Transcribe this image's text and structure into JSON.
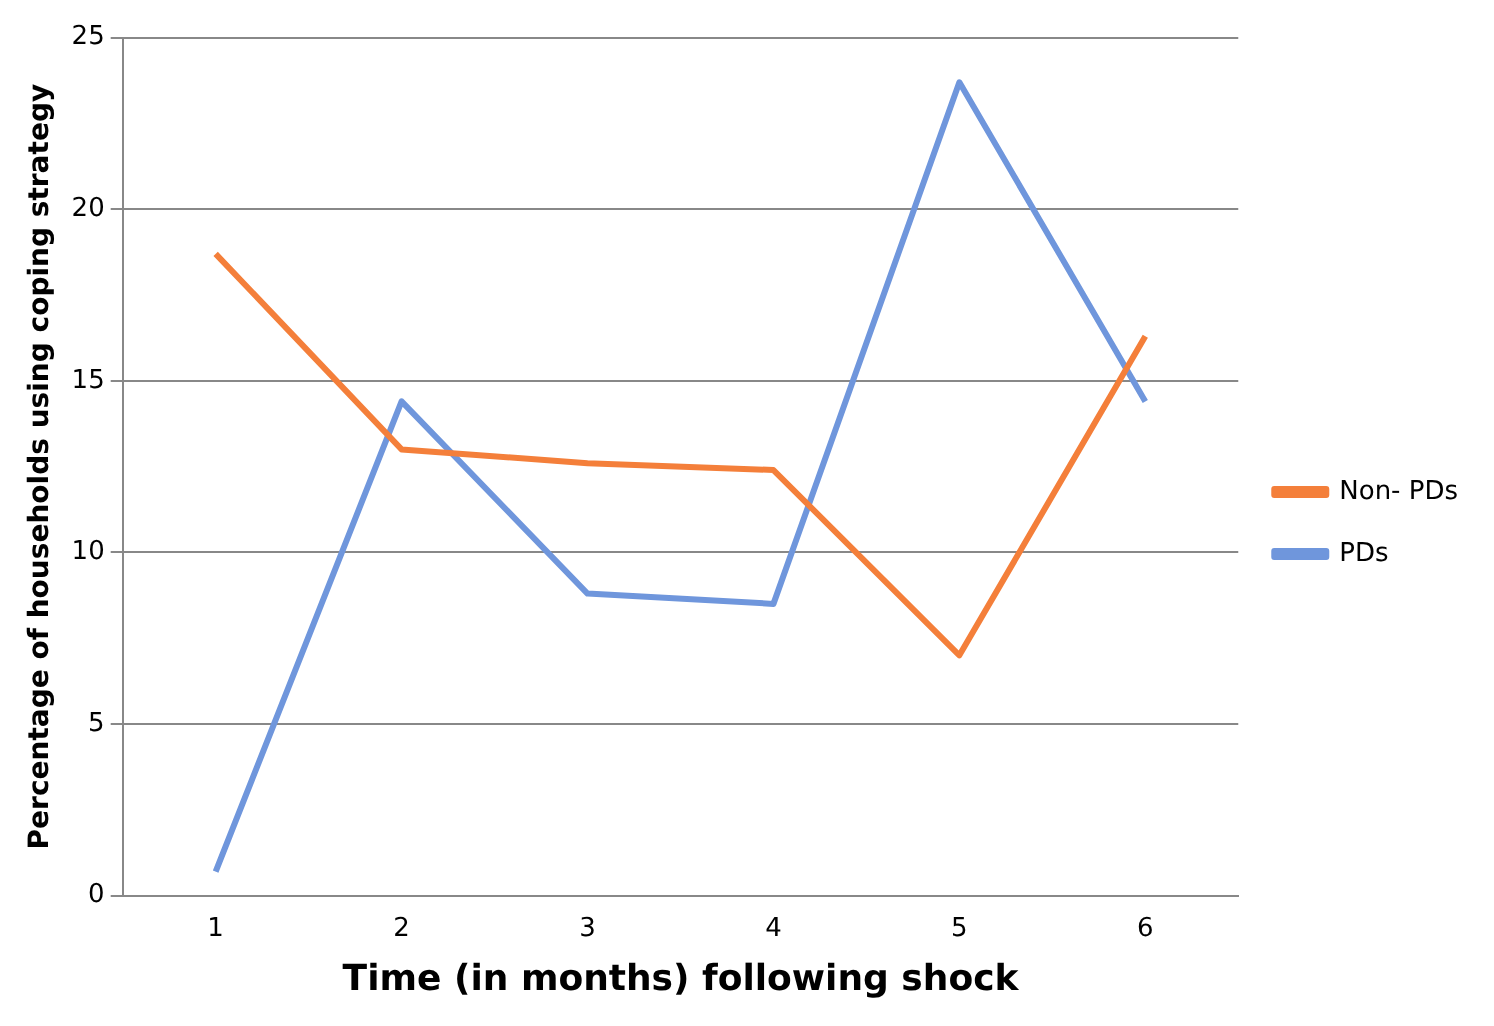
{
  "chart_data": {
    "type": "line",
    "xlabel": "Time (in months) following shock",
    "ylabel": "Percentage of households using coping strategy",
    "categories": [
      "1",
      "2",
      "3",
      "4",
      "5",
      "6"
    ],
    "series": [
      {
        "name": "Non- PDs",
        "color": "#f47f3a",
        "values": [
          18.7,
          13.0,
          12.6,
          12.4,
          7.0,
          16.3
        ]
      },
      {
        "name": "PDs",
        "color": "#6f96dc",
        "values": [
          0.7,
          14.4,
          8.8,
          8.5,
          23.7,
          14.4
        ]
      }
    ],
    "ylim": [
      0,
      25
    ],
    "yticks": [
      0,
      5,
      10,
      15,
      20,
      25
    ],
    "grid": "y",
    "legend": "right",
    "marker": "none",
    "line_style": "solid"
  }
}
